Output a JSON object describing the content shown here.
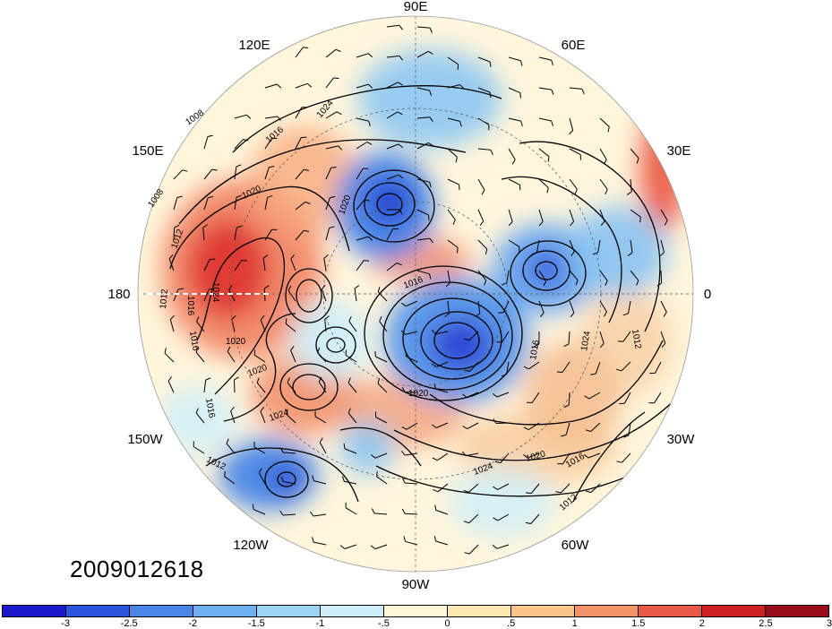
{
  "map": {
    "projection": "north-polar-stereographic",
    "date_label": "2009012618",
    "longitude_labels": [
      "90E",
      "60E",
      "30E",
      "0",
      "30W",
      "60W",
      "90W",
      "120W",
      "150W",
      "180",
      "150E",
      "120E"
    ],
    "isobar_labels": [
      "1008",
      "1008",
      "1012",
      "1012",
      "1016",
      "1016",
      "1016",
      "1020",
      "1020",
      "1020",
      "1024",
      "1024",
      "1024",
      "1020",
      "1016",
      "1012",
      "1016",
      "1012",
      "1024",
      "1016",
      "1020",
      "1024",
      "1020",
      "1016",
      "1012"
    ],
    "features": [
      "shaded anomaly field",
      "sea-level pressure isobars",
      "wind barbs",
      "coastlines",
      "lat-lon grid"
    ]
  },
  "colorbar": {
    "colors": [
      "#1a1acc",
      "#2b55dd",
      "#4a86e8",
      "#6fb0f0",
      "#9bd4f5",
      "#cdeef9",
      "#fff8d8",
      "#fde7b0",
      "#f9c48a",
      "#f29267",
      "#e85a45",
      "#cc2222",
      "#990d1a"
    ],
    "tick_labels": [
      "-3",
      "-2.5",
      "-2",
      "-1.5",
      "-1",
      "-.5",
      "0",
      ".5",
      "1",
      "1.5",
      "2",
      "2.5",
      "3"
    ]
  }
}
